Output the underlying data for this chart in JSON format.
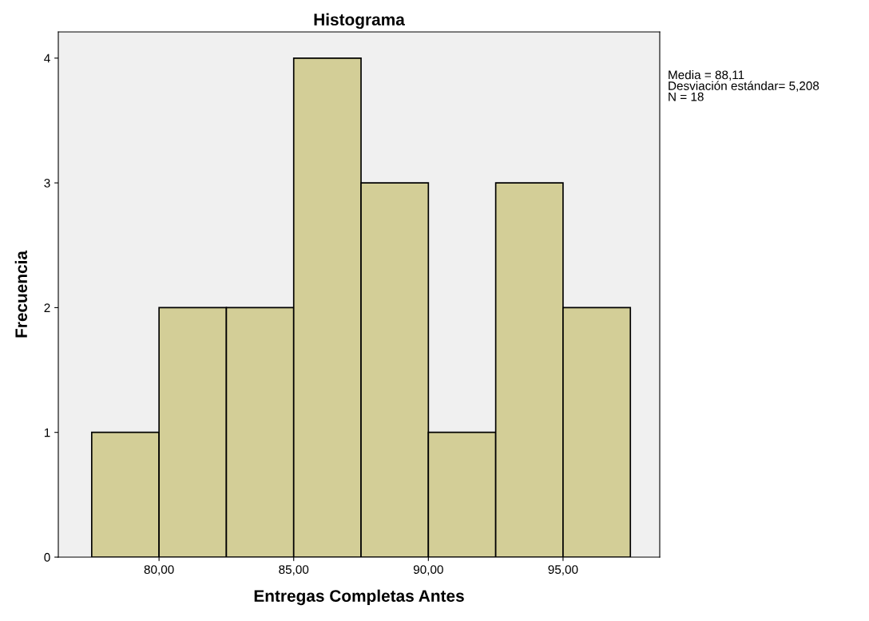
{
  "chart_data": {
    "type": "histogram",
    "title": "Histograma",
    "xlabel": "Entregas Completas Antes",
    "ylabel": "Frecuencia",
    "bins": [
      77.5,
      80,
      82.5,
      85,
      87.5,
      90,
      92.5,
      95,
      97.5
    ],
    "values": [
      1,
      2,
      2,
      4,
      3,
      1,
      3,
      2
    ],
    "color": "#d3ce97",
    "xlim": [
      76.26,
      98.59
    ],
    "ylim": [
      0,
      4.21
    ],
    "xticks": [
      {
        "value": 80,
        "label": "80,00"
      },
      {
        "value": 85,
        "label": "85,00"
      },
      {
        "value": 90,
        "label": "90,00"
      },
      {
        "value": 95,
        "label": "95,00"
      }
    ],
    "yticks": [
      0,
      1,
      2,
      3,
      4
    ],
    "annotations": [
      "Media = 88,11\nDesviación estándar= 5,208\nN = 18"
    ]
  }
}
